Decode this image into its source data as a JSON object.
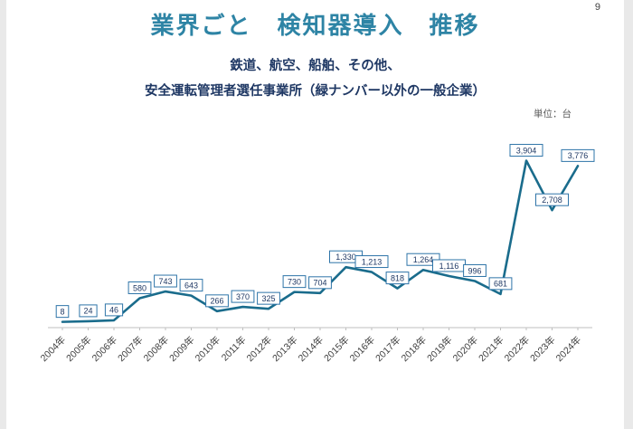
{
  "page": {
    "number": "9"
  },
  "colors": {
    "title": "#2e84a5",
    "subtitle": "#1f3864",
    "line": "#1a6c8c",
    "label_border": "#2e74a8",
    "label_text": "#1f3864",
    "unit_text": "#595959",
    "axis_text": "#404040",
    "axis_line": "#bfbfbf"
  },
  "chart_data": {
    "type": "line",
    "title": "業界ごと　検知器導入　推移",
    "subtitle_line1": "鉄道、航空、船舶、その他、",
    "subtitle_line2": "安全運転管理者選任事業所（緑ナンバー以外の一般企業）",
    "unit_label": "単位：台",
    "categories": [
      "2004年",
      "2005年",
      "2006年",
      "2007年",
      "2008年",
      "2009年",
      "2010年",
      "2011年",
      "2012年",
      "2013年",
      "2014年",
      "2015年",
      "2016年",
      "2017年",
      "2018年",
      "2019年",
      "2020年",
      "2021年",
      "2022年",
      "2023年",
      "2024年"
    ],
    "values": [
      8,
      24,
      46,
      580,
      743,
      643,
      266,
      370,
      325,
      730,
      704,
      1330,
      1213,
      818,
      1264,
      1116,
      996,
      681,
      3904,
      2708,
      3776
    ],
    "value_labels": [
      "8",
      "24",
      "46",
      "580",
      "743",
      "643",
      "266",
      "370",
      "325",
      "730",
      "704",
      "1,330",
      "1,213",
      "818",
      "1,264",
      "1,116",
      "996",
      "681",
      "3,904",
      "2,708",
      "3,776"
    ],
    "xlabel": "",
    "ylabel": "",
    "ylim": [
      0,
      4200
    ],
    "grid": false,
    "legend": "none",
    "data_labels": "boxed, above points"
  }
}
